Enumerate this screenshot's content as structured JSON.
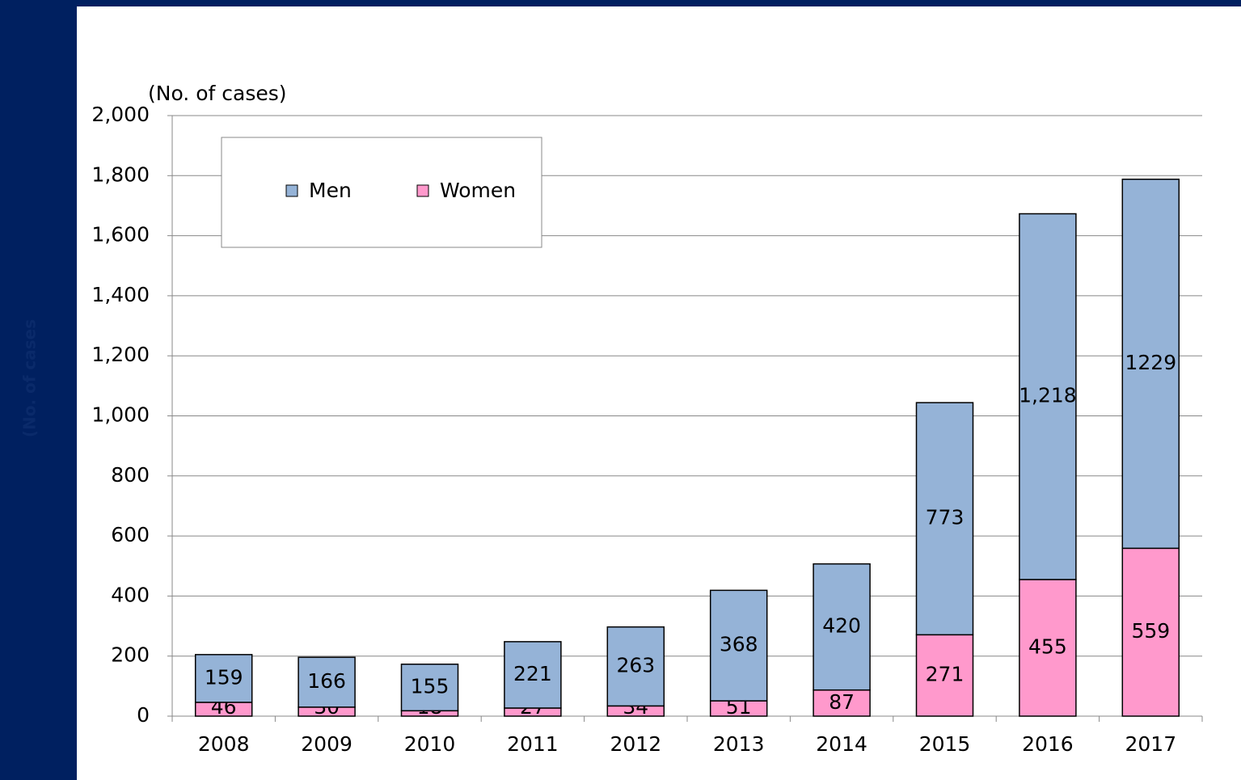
{
  "sidebar": {
    "label": "(No. of cases"
  },
  "chart_data": {
    "type": "stacked_bar",
    "ylabel": "(No. of cases)",
    "categories": [
      "2008",
      "2009",
      "2010",
      "2011",
      "2012",
      "2013",
      "2014",
      "2015",
      "2016",
      "2017"
    ],
    "series": [
      {
        "name": "Women",
        "color": "#ff99cc",
        "values": [
          46,
          30,
          18,
          27,
          34,
          51,
          87,
          271,
          455,
          559
        ]
      },
      {
        "name": "Men",
        "color": "#95b3d7",
        "values": [
          159,
          166,
          155,
          221,
          263,
          368,
          420,
          773,
          1218,
          1229
        ],
        "value_labels": [
          "159",
          "166",
          "155",
          "221",
          "263",
          "368",
          "420",
          "773",
          "1,218",
          "1229"
        ]
      }
    ],
    "legend_order": [
      1,
      0
    ],
    "ylim": [
      0,
      2000
    ],
    "yticks": [
      0,
      200,
      400,
      600,
      800,
      {
        "value": 1000,
        "label": "1,000"
      },
      {
        "value": 1200,
        "label": "1,200"
      },
      {
        "value": 1400,
        "label": "1,400"
      },
      {
        "value": 1600,
        "label": "1,600"
      },
      {
        "value": 1800,
        "label": "1,800"
      },
      {
        "value": 2000,
        "label": "2,000"
      }
    ],
    "grid": true,
    "legend": "upper left"
  }
}
